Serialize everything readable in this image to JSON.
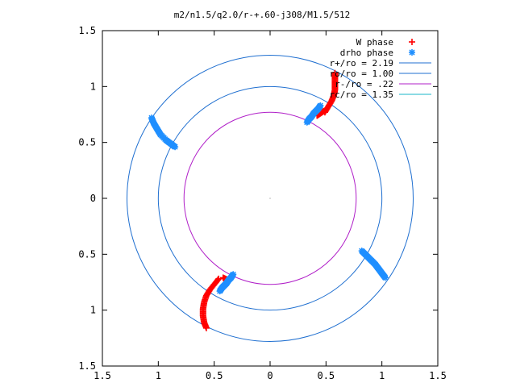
{
  "chart_data": {
    "type": "scatter",
    "title": "m2/n1.5/q2.0/r-+.60-j308/M1.5/512",
    "xlabel": "",
    "ylabel": "",
    "xlim": [
      -1.5,
      1.5
    ],
    "ylim": [
      -1.5,
      1.5
    ],
    "xtick_labels": [
      "1.5",
      "1",
      "0.5",
      "0",
      "0.5",
      "1",
      "1.5"
    ],
    "ytick_labels": [
      "1.5",
      "1",
      "0.5",
      "0",
      "0.5",
      "1",
      "1.5"
    ],
    "tick_values": [
      -1.5,
      -1,
      -0.5,
      0,
      0.5,
      1,
      1.5
    ],
    "grid": false,
    "legend_position": "top-right",
    "circles": [
      {
        "name": "r+/ro = 2.19",
        "radius": 1.28,
        "color": "#1f6fd0"
      },
      {
        "name": "ro/ro = 1.00",
        "radius": 1.0,
        "color": "#1f6fd0"
      },
      {
        "name": "r-/ro =  .22",
        "radius": 0.77,
        "color": "#b01fc8"
      },
      {
        "name": "rc/ro = 1.35",
        "radius": 0.0,
        "color": "#19b7c8"
      }
    ],
    "series": [
      {
        "name": "W phase",
        "color": "#ff0000",
        "marker": "plus",
        "points": [
          [
            0.49,
            0.77
          ],
          [
            0.52,
            0.82
          ],
          [
            0.55,
            0.87
          ],
          [
            0.57,
            0.92
          ],
          [
            0.58,
            0.97
          ],
          [
            0.58,
            1.02
          ],
          [
            0.58,
            1.07
          ],
          [
            0.58,
            1.12
          ],
          [
            0.42,
            0.74
          ],
          [
            0.45,
            0.76
          ],
          [
            0.48,
            0.78
          ],
          [
            -0.46,
            -0.72
          ],
          [
            -0.5,
            -0.77
          ],
          [
            -0.54,
            -0.82
          ],
          [
            -0.57,
            -0.87
          ],
          [
            -0.59,
            -0.93
          ],
          [
            -0.6,
            -0.99
          ],
          [
            -0.6,
            -1.05
          ],
          [
            -0.59,
            -1.11
          ],
          [
            -0.57,
            -1.16
          ],
          [
            -0.42,
            -0.71
          ],
          [
            -0.38,
            -0.73
          ]
        ]
      },
      {
        "name": "drho phase",
        "color": "#1f8fff",
        "marker": "star",
        "points": [
          [
            0.33,
            0.68
          ],
          [
            0.35,
            0.71
          ],
          [
            0.37,
            0.73
          ],
          [
            0.39,
            0.76
          ],
          [
            0.41,
            0.78
          ],
          [
            0.43,
            0.8
          ],
          [
            0.45,
            0.83
          ],
          [
            -1.06,
            0.72
          ],
          [
            -1.04,
            0.67
          ],
          [
            -1.01,
            0.62
          ],
          [
            -0.98,
            0.57
          ],
          [
            -0.93,
            0.52
          ],
          [
            -0.89,
            0.49
          ],
          [
            -0.85,
            0.46
          ],
          [
            0.82,
            -0.47
          ],
          [
            0.86,
            -0.51
          ],
          [
            0.9,
            -0.55
          ],
          [
            0.94,
            -0.59
          ],
          [
            0.97,
            -0.63
          ],
          [
            1.0,
            -0.67
          ],
          [
            1.03,
            -0.71
          ],
          [
            -0.33,
            -0.68
          ],
          [
            -0.35,
            -0.71
          ],
          [
            -0.37,
            -0.73
          ],
          [
            -0.39,
            -0.76
          ],
          [
            -0.41,
            -0.78
          ],
          [
            -0.43,
            -0.8
          ],
          [
            -0.45,
            -0.83
          ]
        ]
      }
    ]
  }
}
